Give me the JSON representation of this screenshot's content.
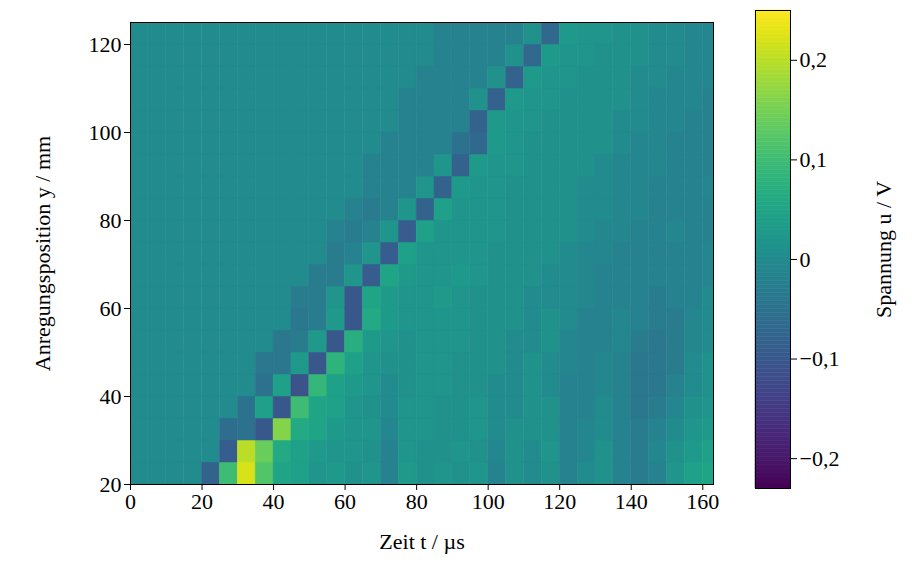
{
  "chart_data": {
    "type": "heatmap",
    "x_label": "Zeit t / µs",
    "y_label": "Anregungsposition y / mm",
    "colorbar_label": "Spannung u / V",
    "color": "viridis",
    "xlim": [
      0,
      163
    ],
    "ylim": [
      20,
      125
    ],
    "xticks": [
      0,
      20,
      40,
      60,
      80,
      100,
      120,
      140,
      160
    ],
    "yticks": [
      20,
      40,
      60,
      80,
      100,
      120
    ],
    "colorbar_range": [
      -0.23,
      0.25
    ],
    "colorbar_ticks": [
      {
        "value": -0.2,
        "label": "−0,2"
      },
      {
        "value": -0.1,
        "label": "−0,1"
      },
      0,
      {
        "value": 0.1,
        "label": "0,1"
      },
      {
        "value": 0.2,
        "label": "0,2"
      }
    ],
    "x_edges": [
      0,
      5,
      10,
      15,
      20,
      25,
      30,
      35,
      40,
      45,
      50,
      55,
      60,
      65,
      70,
      75,
      80,
      85,
      90,
      95,
      100,
      105,
      110,
      115,
      120,
      125,
      130,
      135,
      140,
      145,
      150,
      155,
      160,
      165
    ],
    "y_edges": [
      20,
      25,
      30,
      35,
      40,
      45,
      50,
      55,
      60,
      65,
      70,
      75,
      80,
      85,
      90,
      95,
      100,
      105,
      110,
      115,
      120,
      125
    ],
    "values": [
      [
        0,
        0,
        0,
        0,
        -0.08,
        0.1,
        0.22,
        0.12,
        0.05,
        0.04,
        0.02,
        0.03,
        0.01,
        0.02,
        -0.02,
        0.03,
        0.01,
        0.02,
        0.01,
        0.02,
        -0.02,
        0.01,
        0,
        0.01,
        -0.02,
        0,
        0.01,
        -0.02,
        -0.03,
        -0.02,
        0.02,
        0.04,
        0.05
      ],
      [
        0,
        0,
        0,
        0,
        0,
        -0.09,
        0.2,
        0.14,
        0.06,
        0.04,
        0.03,
        0.02,
        0.02,
        0.01,
        -0.02,
        0.02,
        0.01,
        0.01,
        0.02,
        0.01,
        -0.01,
        0.01,
        0,
        0.02,
        -0.02,
        -0.01,
        0.01,
        -0.02,
        -0.03,
        -0.01,
        0.01,
        0.03,
        0.04
      ],
      [
        0,
        0,
        0,
        0,
        0,
        -0.06,
        -0.05,
        -0.1,
        0.16,
        0.06,
        0.05,
        0.03,
        0.02,
        0.02,
        -0.01,
        0.02,
        0.02,
        0.01,
        0.01,
        0.02,
        0,
        0.01,
        0.01,
        0.01,
        -0.02,
        -0.01,
        0,
        -0.02,
        -0.03,
        -0.02,
        0,
        0.02,
        0.03
      ],
      [
        0,
        0,
        0,
        0,
        0,
        0,
        -0.05,
        0.04,
        -0.1,
        0.1,
        0.05,
        0.04,
        0.02,
        0.01,
        0,
        0.02,
        0.02,
        0.01,
        0.01,
        0.02,
        0,
        0,
        0.01,
        0.01,
        -0.02,
        -0.02,
        0,
        -0.02,
        -0.04,
        -0.03,
        -0.01,
        0.01,
        0.02
      ],
      [
        0,
        0,
        0,
        0,
        0,
        0,
        0,
        -0.05,
        0.04,
        -0.11,
        0.09,
        0.04,
        0.03,
        0.02,
        0,
        0.01,
        0.02,
        0.02,
        0.01,
        0.01,
        0,
        0,
        0.01,
        0,
        -0.02,
        -0.02,
        -0.01,
        -0.02,
        -0.04,
        -0.04,
        -0.02,
        0,
        0.01
      ],
      [
        0,
        0,
        0,
        0,
        0,
        0,
        0,
        -0.04,
        -0.04,
        0.03,
        -0.1,
        0.08,
        0.04,
        0.02,
        0.01,
        0.01,
        0.02,
        0.02,
        0.01,
        0.01,
        0.01,
        0,
        0.01,
        0,
        -0.01,
        -0.02,
        -0.01,
        -0.02,
        -0.04,
        -0.04,
        -0.03,
        0,
        0.01
      ],
      [
        0,
        0,
        0,
        0,
        0,
        0,
        0,
        0,
        -0.04,
        -0.03,
        0.03,
        -0.1,
        0.07,
        0.03,
        0.02,
        0.01,
        0.02,
        0.02,
        0.02,
        0.01,
        0.01,
        0,
        0,
        0.01,
        -0.01,
        -0.02,
        -0.02,
        -0.01,
        -0.03,
        -0.04,
        -0.03,
        -0.01,
        0
      ],
      [
        0,
        0,
        0,
        0,
        0,
        0,
        0,
        0,
        0,
        -0.04,
        -0.03,
        0.03,
        -0.1,
        0.06,
        0.03,
        0.02,
        0.02,
        0.02,
        0.02,
        0.01,
        0.01,
        0.01,
        0,
        0.01,
        0,
        -0.02,
        -0.02,
        -0.01,
        -0.02,
        -0.03,
        -0.03,
        -0.01,
        0
      ],
      [
        0,
        0,
        0,
        0,
        0,
        0,
        0,
        0,
        0,
        -0.03,
        -0.03,
        0.02,
        -0.1,
        0.05,
        0.03,
        0.02,
        0.02,
        0.03,
        0.02,
        0.01,
        0.01,
        0.01,
        0,
        0,
        0,
        -0.01,
        -0.02,
        -0.02,
        -0.02,
        -0.03,
        -0.02,
        -0.02,
        0
      ],
      [
        0,
        0,
        0,
        0,
        0,
        0,
        0,
        0,
        0,
        0,
        -0.03,
        -0.03,
        0.02,
        -0.09,
        0.05,
        0.03,
        0.02,
        0.02,
        0.03,
        0.02,
        0.01,
        0.01,
        0.01,
        0,
        0,
        -0.01,
        -0.02,
        -0.02,
        -0.02,
        -0.02,
        -0.02,
        -0.02,
        -0.01
      ],
      [
        0,
        0,
        0,
        0,
        0,
        0,
        0,
        0,
        0,
        0,
        0,
        -0.03,
        -0.02,
        0.02,
        -0.09,
        0.04,
        0.02,
        0.02,
        0.02,
        0.02,
        0.01,
        0.01,
        0.01,
        0.01,
        0,
        -0.01,
        -0.01,
        -0.02,
        -0.02,
        -0.02,
        -0.02,
        -0.02,
        -0.01
      ],
      [
        0,
        0,
        0,
        0,
        0,
        0,
        0,
        0,
        0,
        0,
        0,
        -0.02,
        -0.03,
        -0.02,
        0.02,
        -0.09,
        0.04,
        0.02,
        0.02,
        0.02,
        0.02,
        0.01,
        0.01,
        0.01,
        0.01,
        0,
        -0.01,
        -0.01,
        -0.02,
        -0.02,
        -0.01,
        -0.02,
        -0.02
      ],
      [
        0,
        0,
        0,
        0,
        0,
        0,
        0,
        0,
        0,
        0,
        0,
        0,
        -0.02,
        -0.03,
        -0.02,
        0.02,
        -0.08,
        0.04,
        0.02,
        0.02,
        0.02,
        0.01,
        0.01,
        0.01,
        0.01,
        0,
        0,
        -0.01,
        -0.01,
        -0.02,
        -0.02,
        -0.02,
        -0.02
      ],
      [
        0,
        0,
        0,
        0,
        0,
        0,
        0,
        0,
        0,
        0,
        0,
        0,
        0,
        -0.02,
        -0.02,
        -0.02,
        0.02,
        -0.08,
        0.03,
        0.02,
        0.02,
        0.01,
        0.01,
        0.01,
        0.01,
        0,
        0,
        -0.01,
        -0.01,
        -0.02,
        -0.02,
        -0.02,
        -0.01
      ],
      [
        0,
        0,
        0,
        0,
        0,
        0,
        0,
        0,
        0,
        0,
        0,
        0,
        0,
        -0.02,
        -0.02,
        -0.02,
        -0.02,
        0.02,
        -0.08,
        0.03,
        0.02,
        0.02,
        0.01,
        0.01,
        0.01,
        0.01,
        0,
        -0.01,
        -0.01,
        -0.01,
        -0.02,
        -0.02,
        -0.02
      ],
      [
        0,
        0,
        0,
        0,
        0,
        0,
        0,
        0,
        0,
        0,
        0,
        0,
        0,
        0,
        -0.02,
        -0.02,
        -0.02,
        -0.02,
        -0.05,
        -0.07,
        0.03,
        0.02,
        0.01,
        0.01,
        0.01,
        0.01,
        0.01,
        0,
        -0.01,
        -0.01,
        -0.02,
        -0.02,
        -0.02
      ],
      [
        0,
        0,
        0,
        0,
        0,
        0,
        0,
        0,
        0,
        0,
        0,
        0,
        0,
        0,
        0,
        -0.02,
        -0.02,
        -0.02,
        -0.02,
        -0.08,
        0.03,
        0.02,
        0.02,
        0.01,
        0.01,
        0.01,
        0.01,
        0,
        0,
        -0.01,
        -0.01,
        -0.02,
        -0.02
      ],
      [
        0,
        0,
        0,
        0,
        0,
        0,
        0,
        0,
        0,
        0,
        0,
        0,
        0,
        0,
        0,
        -0.02,
        -0.02,
        -0.02,
        -0.02,
        0.01,
        -0.08,
        0.03,
        0.02,
        0.02,
        0.01,
        0.01,
        0.01,
        0.01,
        0,
        -0.01,
        -0.01,
        -0.01,
        -0.02
      ],
      [
        0,
        0,
        0,
        0,
        0,
        0,
        0,
        0,
        0,
        0,
        0,
        0,
        0,
        0,
        0,
        0,
        -0.02,
        -0.02,
        -0.02,
        -0.02,
        0.01,
        -0.08,
        0.03,
        0.02,
        0.02,
        0.01,
        0.01,
        0.01,
        0,
        0,
        -0.01,
        -0.01,
        -0.01
      ],
      [
        0,
        0,
        0,
        0,
        0,
        0,
        0,
        0,
        0,
        0,
        0,
        0,
        0,
        0,
        0,
        0,
        0,
        -0.02,
        -0.02,
        -0.02,
        -0.02,
        0.01,
        -0.07,
        0.03,
        0.02,
        0.02,
        0.01,
        0.01,
        0.01,
        0,
        0,
        -0.01,
        -0.01
      ],
      [
        0,
        0,
        0,
        0,
        0,
        0,
        0,
        0,
        0,
        0,
        0,
        0,
        0,
        0,
        0,
        0,
        0,
        -0.02,
        -0.02,
        -0.02,
        -0.02,
        -0.02,
        0.01,
        -0.07,
        0.03,
        0.02,
        0.02,
        0.01,
        0.01,
        0,
        0,
        -0.01,
        -0.01
      ]
    ]
  }
}
